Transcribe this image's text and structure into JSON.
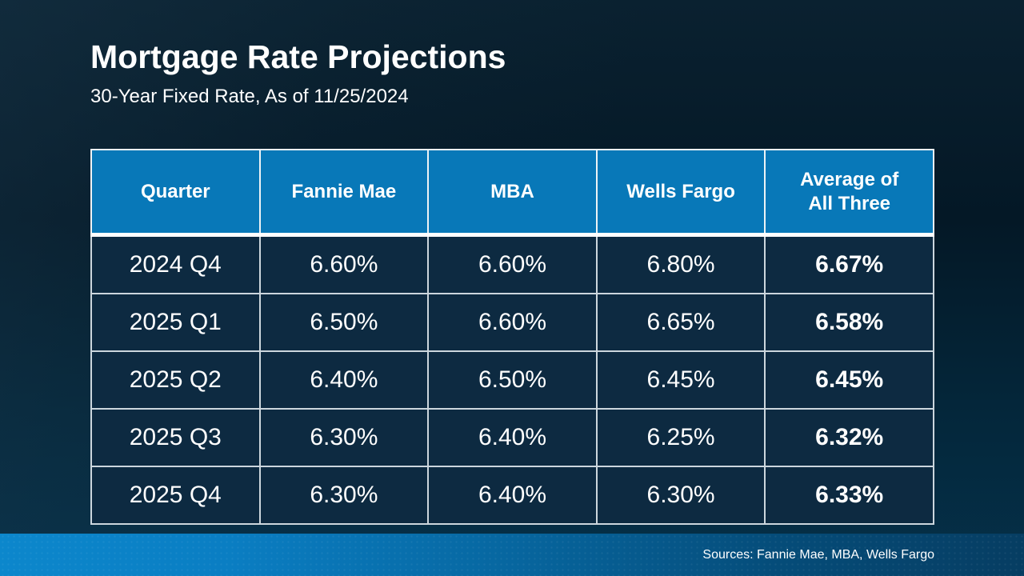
{
  "slide": {
    "title": "Mortgage Rate Projections",
    "subtitle": "30-Year Fixed Rate, As of 11/25/2024",
    "footer": {
      "sources": "Sources: Fannie Mae, MBA, Wells Fargo"
    }
  },
  "colors": {
    "header_blue": "#0878B8",
    "cell_navy": "#0D2A41",
    "background_top": "#041826",
    "background_bottom": "#053049",
    "footer_bar_left": "#0C87CC",
    "footer_bar_right": "#063D62",
    "text": "#FFFFFF"
  },
  "table": {
    "columns": [
      {
        "key": "quarter",
        "label": "Quarter"
      },
      {
        "key": "fannie_mae",
        "label": "Fannie Mae"
      },
      {
        "key": "mba",
        "label": "MBA"
      },
      {
        "key": "wells_fargo",
        "label": "Wells Fargo"
      },
      {
        "key": "average",
        "label": "Average of All Three"
      }
    ],
    "rows": [
      {
        "quarter": "2024 Q4",
        "fannie_mae": "6.60%",
        "mba": "6.60%",
        "wells_fargo": "6.80%",
        "average": "6.67%"
      },
      {
        "quarter": "2025 Q1",
        "fannie_mae": "6.50%",
        "mba": "6.60%",
        "wells_fargo": "6.65%",
        "average": "6.58%"
      },
      {
        "quarter": "2025 Q2",
        "fannie_mae": "6.40%",
        "mba": "6.50%",
        "wells_fargo": "6.45%",
        "average": "6.45%"
      },
      {
        "quarter": "2025 Q3",
        "fannie_mae": "6.30%",
        "mba": "6.40%",
        "wells_fargo": "6.25%",
        "average": "6.32%"
      },
      {
        "quarter": "2025 Q4",
        "fannie_mae": "6.30%",
        "mba": "6.40%",
        "wells_fargo": "6.30%",
        "average": "6.33%"
      }
    ]
  },
  "chart_data": {
    "type": "table",
    "title": "Mortgage Rate Projections",
    "subtitle": "30-Year Fixed Rate, As of 11/25/2024",
    "columns": [
      "Quarter",
      "Fannie Mae",
      "MBA",
      "Wells Fargo",
      "Average of All Three"
    ],
    "rows": [
      [
        "2024 Q4",
        "6.60%",
        "6.60%",
        "6.80%",
        "6.67%"
      ],
      [
        "2025 Q1",
        "6.50%",
        "6.60%",
        "6.65%",
        "6.58%"
      ],
      [
        "2025 Q2",
        "6.40%",
        "6.50%",
        "6.45%",
        "6.45%"
      ],
      [
        "2025 Q3",
        "6.30%",
        "6.40%",
        "6.25%",
        "6.32%"
      ],
      [
        "2025 Q4",
        "6.30%",
        "6.40%",
        "6.30%",
        "6.33%"
      ]
    ],
    "series": [
      {
        "name": "Fannie Mae",
        "values": [
          6.6,
          6.5,
          6.4,
          6.3,
          6.3
        ]
      },
      {
        "name": "MBA",
        "values": [
          6.6,
          6.6,
          6.5,
          6.4,
          6.4
        ]
      },
      {
        "name": "Wells Fargo",
        "values": [
          6.8,
          6.65,
          6.45,
          6.25,
          6.3
        ]
      },
      {
        "name": "Average of All Three",
        "values": [
          6.67,
          6.58,
          6.45,
          6.32,
          6.33
        ]
      }
    ],
    "categories": [
      "2024 Q4",
      "2025 Q1",
      "2025 Q2",
      "2025 Q3",
      "2025 Q4"
    ],
    "source_note": "Sources: Fannie Mae, MBA, Wells Fargo"
  }
}
